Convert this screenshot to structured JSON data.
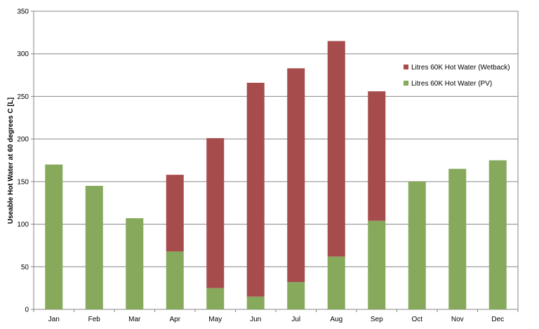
{
  "chart_data": {
    "type": "bar",
    "stacked": true,
    "categories": [
      "Jan",
      "Feb",
      "Mar",
      "Apr",
      "May",
      "Jun",
      "Jul",
      "Aug",
      "Sep",
      "Oct",
      "Nov",
      "Dec"
    ],
    "series": [
      {
        "name": "Litres 60K Hot Water (PV)",
        "color": "#86a95c",
        "values": [
          170,
          145,
          107,
          68,
          25,
          15,
          32,
          62,
          104,
          150,
          165,
          175
        ]
      },
      {
        "name": "Litres 60K Hot Water (Wetback)",
        "color": "#a64c4c",
        "values": [
          0,
          0,
          0,
          90,
          176,
          251,
          251,
          253,
          152,
          0,
          0,
          0
        ]
      }
    ],
    "ylabel": "Useable Hot Water at 60 degrees C [L]",
    "xlabel": "",
    "ylim": [
      0,
      350
    ],
    "yticks": [
      0,
      50,
      100,
      150,
      200,
      250,
      300,
      350
    ],
    "grid": true,
    "legend_position": "right"
  }
}
